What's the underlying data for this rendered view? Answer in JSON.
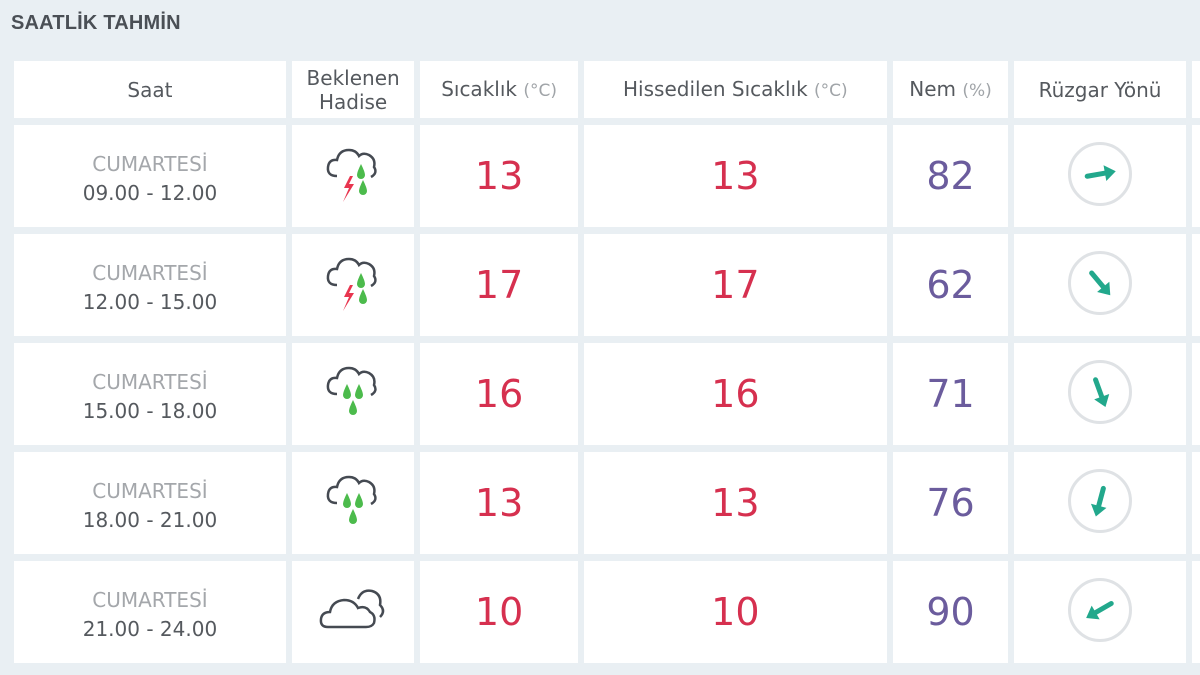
{
  "title": "SAATLİK TAHMİN",
  "headers": {
    "saat": "Saat",
    "hadise": "Beklenen Hadise",
    "sicaklik": "Sıcaklık",
    "sicaklik_unit": "(°C)",
    "hissedilen": "Hissedilen Sıcaklık",
    "hissedilen_unit": "(°C)",
    "nem": "Nem",
    "nem_unit": "(%)",
    "ruzgar": "Rüzgar Yönü"
  },
  "colors": {
    "temperature": "#d6304f",
    "humidity": "#6b5c9d",
    "wind_arrow": "#22a88c",
    "rain": "#4cbb4c",
    "lightning": "#e8354f"
  },
  "rows": [
    {
      "day": "CUMARTESİ",
      "time": "09.00 - 12.00",
      "icon": "thunderstorm-rain-icon",
      "temp": "13",
      "feels": "13",
      "humidity": "82",
      "wind_deg": 80
    },
    {
      "day": "CUMARTESİ",
      "time": "12.00 - 15.00",
      "icon": "thunderstorm-rain-icon",
      "temp": "17",
      "feels": "17",
      "humidity": "62",
      "wind_deg": 140
    },
    {
      "day": "CUMARTESİ",
      "time": "15.00 - 18.00",
      "icon": "rain-icon",
      "temp": "16",
      "feels": "16",
      "humidity": "71",
      "wind_deg": 160
    },
    {
      "day": "CUMARTESİ",
      "time": "18.00 - 21.00",
      "icon": "rain-icon",
      "temp": "13",
      "feels": "13",
      "humidity": "76",
      "wind_deg": 195
    },
    {
      "day": "CUMARTESİ",
      "time": "21.00 - 24.00",
      "icon": "cloud-icon",
      "temp": "10",
      "feels": "10",
      "humidity": "90",
      "wind_deg": 240
    }
  ]
}
